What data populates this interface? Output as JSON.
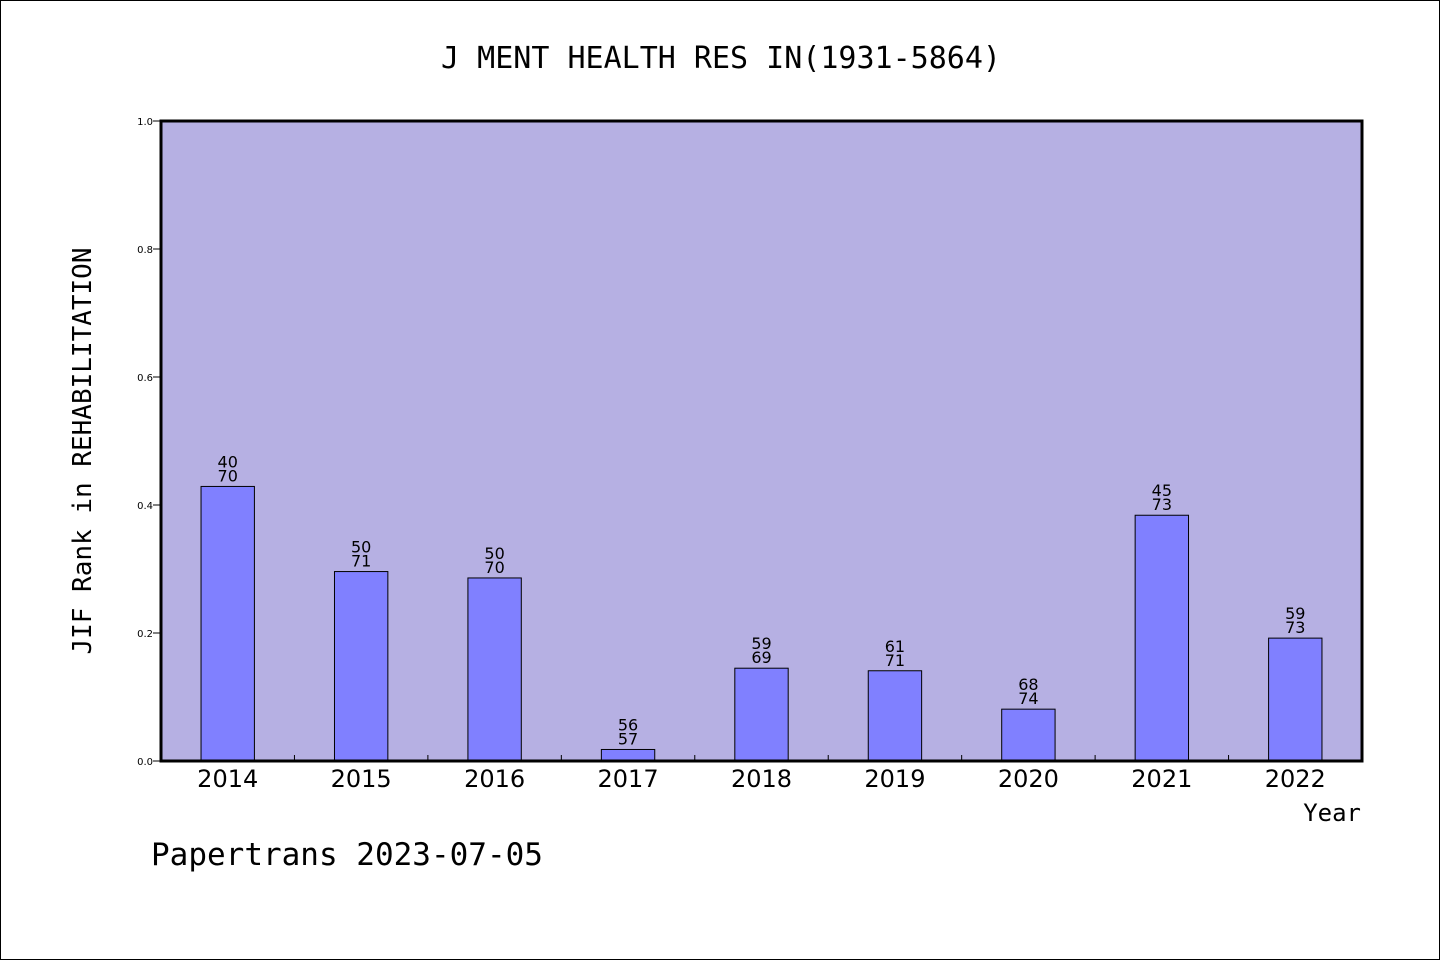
{
  "chart_data": {
    "type": "bar",
    "title": "J MENT HEALTH RES IN(1931-5864)",
    "xlabel": "Year",
    "ylabel": "JIF Rank in REHABILITATION",
    "footer": "Papertrans 2023-07-05",
    "ylim": [
      0,
      1.0
    ],
    "yticks": [
      "0.0",
      "0.2",
      "0.4",
      "0.6",
      "0.8",
      "1.0"
    ],
    "grid": false,
    "categories": [
      "2014",
      "2015",
      "2016",
      "2017",
      "2018",
      "2019",
      "2020",
      "2021",
      "2022"
    ],
    "values": [
      0.429,
      0.296,
      0.286,
      0.018,
      0.145,
      0.141,
      0.081,
      0.384,
      0.192
    ],
    "rank_labels": [
      {
        "rank": "40",
        "total": "70"
      },
      {
        "rank": "50",
        "total": "71"
      },
      {
        "rank": "50",
        "total": "70"
      },
      {
        "rank": "56",
        "total": "57"
      },
      {
        "rank": "59",
        "total": "69"
      },
      {
        "rank": "61",
        "total": "71"
      },
      {
        "rank": "68",
        "total": "74"
      },
      {
        "rank": "45",
        "total": "73"
      },
      {
        "rank": "59",
        "total": "73"
      }
    ],
    "colors": {
      "plot_background": "#b6b0e3",
      "bar_fill": "#8080ff",
      "bar_stroke": "#000000",
      "axis": "#000000"
    }
  }
}
